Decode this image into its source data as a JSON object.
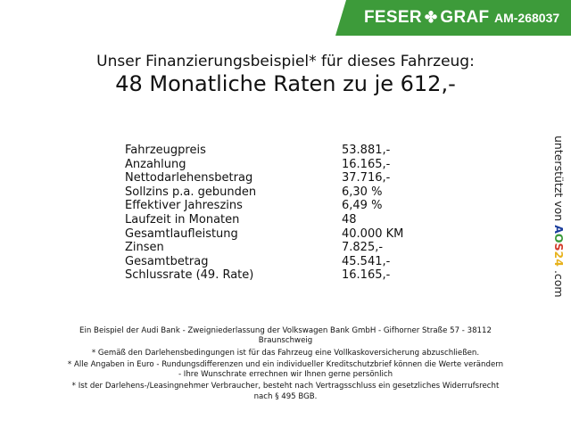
{
  "header": {
    "brand_left": "FESER",
    "brand_right": "GRAF",
    "brand_icon": "clover-icon",
    "code": "AM-268037",
    "color": "#3d9b3a"
  },
  "title": {
    "line1": "Unser Finanzierungsbeispiel* für dieses Fahrzeug:",
    "line2": "48 Monatliche Raten zu je 612,-"
  },
  "rows": [
    {
      "label": "Fahrzeugpreis",
      "value": "53.881,-"
    },
    {
      "label": "Anzahlung",
      "value": "16.165,-"
    },
    {
      "label": "Nettodarlehensbetrag",
      "value": "37.716,-"
    },
    {
      "label": "Sollzins p.a. gebunden",
      "value": "6,30 %"
    },
    {
      "label": "Effektiver Jahreszins",
      "value": "6,49 %"
    },
    {
      "label": "Laufzeit in Monaten",
      "value": "48"
    },
    {
      "label": "Gesamtlaufleistung",
      "value": "40.000 KM"
    },
    {
      "label": "Zinsen",
      "value": "7.825,-"
    },
    {
      "label": "Gesamtbetrag",
      "value": "45.541,-"
    },
    {
      "label": "Schlussrate (49. Rate)",
      "value": "16.165,-"
    }
  ],
  "sponsor": {
    "prefix": "unterstützt von",
    "logo": "AOS24",
    "suffix": ".com"
  },
  "footer": [
    "Ein Beispiel der Audi Bank - Zweigniederlassung der Volkswagen Bank GmbH - Gifhorner Straße 57 - 38112",
    "Braunschweig",
    "* Gemäß den Darlehensbedingungen ist für das Fahrzeug eine Vollkaskoversicherung abzuschließen.",
    "* Alle Angaben in Euro - Rundungsdifferenzen und ein individueller Kreditschutzbrief können die Werte verändern",
    "- Ihre Wunschrate errechnen wir Ihnen gerne persönlich",
    "* Ist der Darlehens-/Leasingnehmer Verbraucher, besteht nach Vertragsschluss ein gesetzliches Widerrufsrecht",
    "nach § 495 BGB."
  ]
}
